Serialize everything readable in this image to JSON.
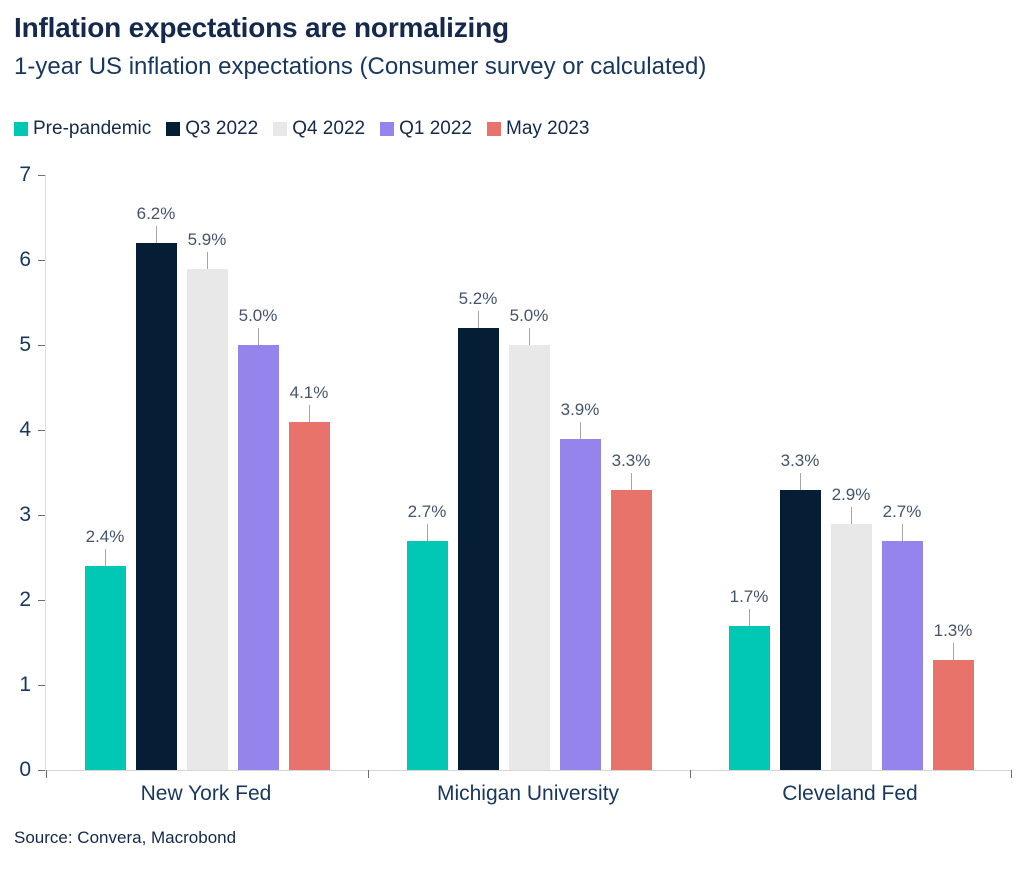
{
  "chart_data": {
    "type": "bar",
    "title": "Inflation expectations are normalizing",
    "subtitle": "1-year US inflation expectations (Consumer survey or calculated)",
    "categories": [
      "New York Fed",
      "Michigan University",
      "Cleveland Fed"
    ],
    "series": [
      {
        "name": "Pre-pandemic",
        "color": "#00C8B4",
        "values": [
          2.4,
          2.7,
          1.7
        ],
        "labels": [
          "2.4%",
          "2.7%",
          "1.7%"
        ]
      },
      {
        "name": "Q3 2022",
        "color": "#051E36",
        "values": [
          6.2,
          5.2,
          3.3
        ],
        "labels": [
          "6.2%",
          "5.2%",
          "3.3%"
        ]
      },
      {
        "name": "Q4 2022",
        "color": "#E8E8E8",
        "values": [
          5.9,
          5.0,
          2.9
        ],
        "labels": [
          "5.9%",
          "5.0%",
          "2.9%"
        ]
      },
      {
        "name": "Q1 2022",
        "color": "#9484EB",
        "values": [
          5.0,
          3.9,
          2.7
        ],
        "labels": [
          "5.0%",
          "3.9%",
          "2.7%"
        ]
      },
      {
        "name": "May 2023",
        "color": "#E8736A",
        "values": [
          4.1,
          3.3,
          1.3
        ],
        "labels": [
          "4.1%",
          "3.3%",
          "1.3%"
        ]
      }
    ],
    "ylim": [
      0,
      7
    ],
    "yticks": [
      "0",
      "1",
      "2",
      "3",
      "4",
      "5",
      "6",
      "7"
    ],
    "grid": false,
    "legend_position": "top-left",
    "source": "Source: Convera, Macrobond"
  },
  "colors": {
    "title": "#14294B",
    "axis_label": "#17375E",
    "data_label": "#44546A",
    "axis_line": "#D9D9D9",
    "tick_mark": "#6E6E6E",
    "leader_line": "#A6A6A6",
    "background": "#FFFFFF"
  }
}
